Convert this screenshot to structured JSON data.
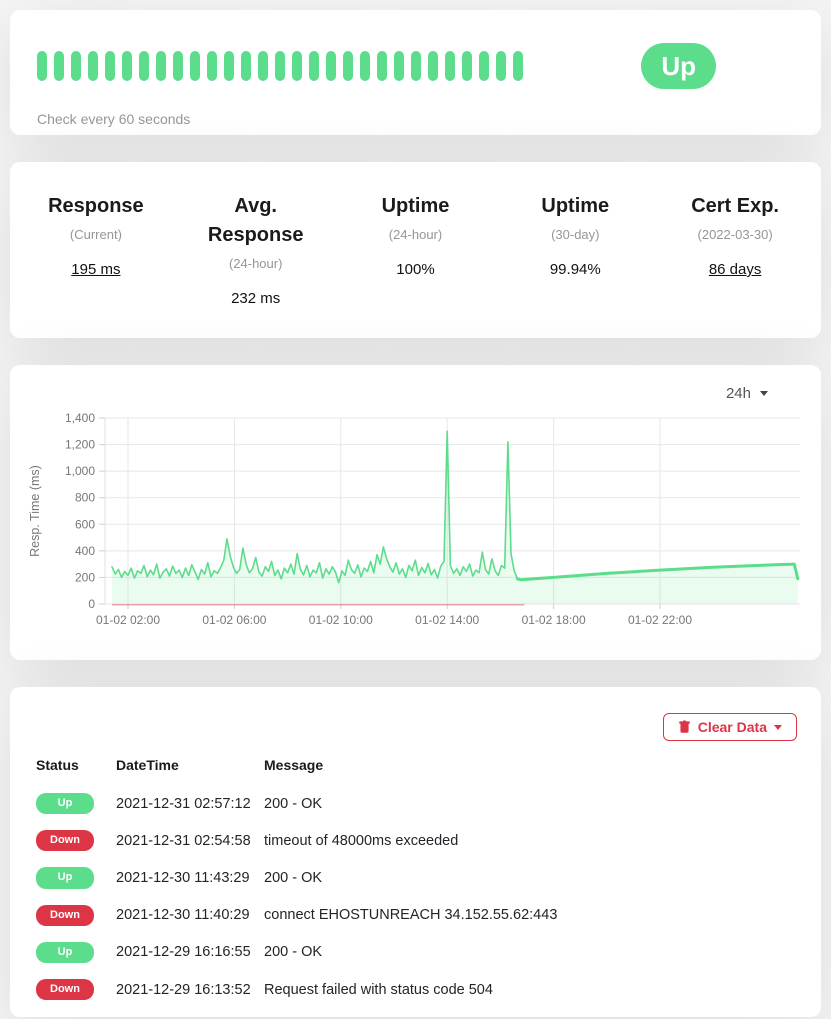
{
  "colors": {
    "primary": "#5cdd8b",
    "danger": "#dc3545",
    "chart_fill": "rgba(92,221,139,0.13)",
    "down_line": "rgba(220,53,69,0.55)"
  },
  "monitor": {
    "status_label": "Up",
    "check_interval": "Check every 60 seconds",
    "heartbeat_count": 29
  },
  "stats": {
    "items": [
      {
        "id": "response-current",
        "title": "Response",
        "subtitle": "(Current)",
        "value": "195 ms",
        "underline": true
      },
      {
        "id": "avg-response-24h",
        "title": "Avg. Response",
        "subtitle": "(24-hour)",
        "value": "232 ms",
        "underline": false
      },
      {
        "id": "uptime-24h",
        "title": "Uptime",
        "subtitle": "(24-hour)",
        "value": "100%",
        "underline": false
      },
      {
        "id": "uptime-30d",
        "title": "Uptime",
        "subtitle": "(30-day)",
        "value": "99.94%",
        "underline": false
      },
      {
        "id": "cert-exp",
        "title": "Cert Exp.",
        "subtitle": "(2022-03-30)",
        "value": "86 days",
        "underline": true
      }
    ]
  },
  "chart_data": {
    "type": "area",
    "title": "",
    "ylabel": "Resp. Time (ms)",
    "period_selector": "24h",
    "ylim": [
      0,
      1400
    ],
    "grid": true,
    "y_ticks": [
      {
        "v": 0,
        "label": "0"
      },
      {
        "v": 200,
        "label": "200"
      },
      {
        "v": 400,
        "label": "400"
      },
      {
        "v": 600,
        "label": "600"
      },
      {
        "v": 800,
        "label": "800"
      },
      {
        "v": 1000,
        "label": "1,000"
      },
      {
        "v": 1200,
        "label": "1,200"
      },
      {
        "v": 1400,
        "label": "1,400"
      }
    ],
    "x_ticks": [
      {
        "t": 2,
        "label": "01-02 02:00"
      },
      {
        "t": 6,
        "label": "01-02 06:00"
      },
      {
        "t": 10,
        "label": "01-02 10:00"
      },
      {
        "t": 14,
        "label": "01-02 14:00"
      },
      {
        "t": 18,
        "label": "01-02 18:00"
      },
      {
        "t": 22,
        "label": "01-02 22:00"
      }
    ],
    "x_domain_h": [
      1.135,
      27.26
    ],
    "series": [
      {
        "name": "response-time-ms",
        "t0": 1.4,
        "dt": 0.12,
        "values": [
          280,
          225,
          260,
          200,
          245,
          215,
          270,
          195,
          250,
          230,
          290,
          205,
          255,
          220,
          300,
          195,
          240,
          265,
          210,
          285,
          230,
          255,
          200,
          270,
          215,
          295,
          240,
          185,
          260,
          225,
          310,
          205,
          250,
          230,
          275,
          330,
          490,
          360,
          280,
          230,
          260,
          420,
          300,
          235,
          265,
          350,
          240,
          210,
          280,
          245,
          320,
          215,
          255,
          190,
          270,
          235,
          300,
          225,
          380,
          260,
          220,
          290,
          205,
          255,
          235,
          310,
          195,
          265,
          225,
          280,
          240,
          160,
          250,
          215,
          330,
          260,
          230,
          295,
          205,
          270,
          245,
          320,
          235,
          370,
          300,
          430,
          340,
          280,
          240,
          310,
          225,
          265,
          200,
          290,
          250,
          330,
          215,
          275,
          235,
          305,
          220,
          260,
          195,
          285,
          320,
          1300,
          290,
          230,
          265,
          215,
          280,
          245,
          300,
          210,
          255,
          235,
          390,
          260,
          225,
          340,
          250,
          215,
          290,
          270,
          1220,
          380,
          250,
          190
        ]
      },
      {
        "name": "hourly-trend",
        "points": [
          [
            16.76,
            183
          ],
          [
            18,
            200
          ],
          [
            20,
            230
          ],
          [
            22,
            255
          ],
          [
            24,
            276
          ],
          [
            25.5,
            289
          ],
          [
            26.6,
            297
          ],
          [
            27.05,
            300
          ],
          [
            27.18,
            190
          ]
        ]
      }
    ],
    "down_marker": {
      "from_h": 1.4,
      "to_h": 16.9
    }
  },
  "events": {
    "clear_data_label": "Clear Data",
    "columns": [
      "Status",
      "DateTime",
      "Message"
    ],
    "rows": [
      {
        "status": "Up",
        "datetime": "2021-12-31 02:57:12",
        "message": "200 - OK"
      },
      {
        "status": "Down",
        "datetime": "2021-12-31 02:54:58",
        "message": "timeout of 48000ms exceeded"
      },
      {
        "status": "Up",
        "datetime": "2021-12-30 11:43:29",
        "message": "200 - OK"
      },
      {
        "status": "Down",
        "datetime": "2021-12-30 11:40:29",
        "message": "connect EHOSTUNREACH 34.152.55.62:443"
      },
      {
        "status": "Up",
        "datetime": "2021-12-29 16:16:55",
        "message": "200 - OK"
      },
      {
        "status": "Down",
        "datetime": "2021-12-29 16:13:52",
        "message": "Request failed with status code 504"
      }
    ]
  }
}
